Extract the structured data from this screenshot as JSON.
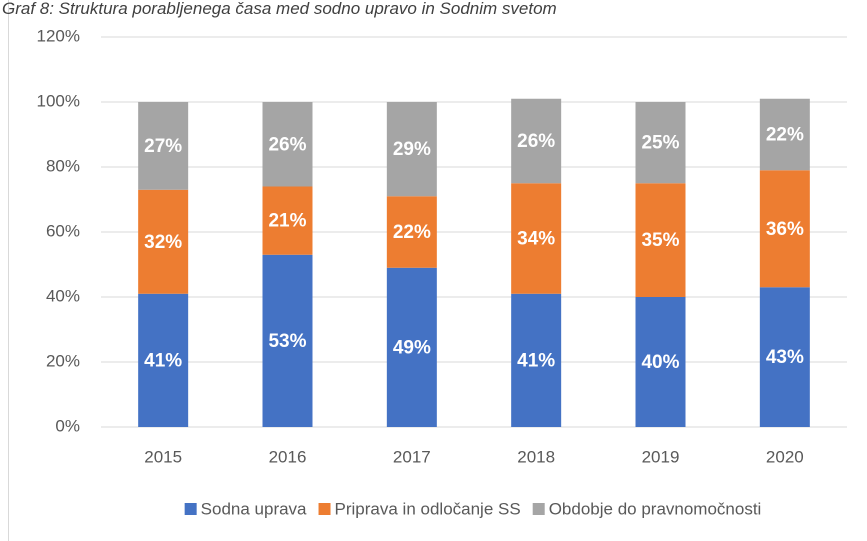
{
  "chart_data": {
    "type": "stacked_bar",
    "title": "Graf 8: Struktura porabljenega časa med sodno upravo in Sodnim svetom",
    "categories": [
      "2015",
      "2016",
      "2017",
      "2018",
      "2019",
      "2020"
    ],
    "series": [
      {
        "name": "Sodna uprava",
        "color": "#4472c4",
        "values": [
          41,
          53,
          49,
          41,
          40,
          43
        ],
        "value_labels": [
          "41%",
          "53%",
          "49%",
          "41%",
          "40%",
          "43%"
        ]
      },
      {
        "name": "Priprava in odločanje SS",
        "color": "#ed7d31",
        "values": [
          32,
          21,
          22,
          34,
          35,
          36
        ],
        "value_labels": [
          "32%",
          "21%",
          "22%",
          "34%",
          "35%",
          "36%"
        ]
      },
      {
        "name": "Obdobje do pravnomočnosti",
        "color": "#a5a5a5",
        "values": [
          27,
          26,
          29,
          26,
          25,
          22
        ],
        "value_labels": [
          "27%",
          "26%",
          "29%",
          "26%",
          "25%",
          "22%"
        ]
      }
    ],
    "ylim": [
      0,
      120
    ],
    "yticks": [
      {
        "value": 0,
        "label": "0%"
      },
      {
        "value": 20,
        "label": "20%"
      },
      {
        "value": 40,
        "label": "40%"
      },
      {
        "value": 60,
        "label": "60%"
      },
      {
        "value": 80,
        "label": "80%"
      },
      {
        "value": 100,
        "label": "100%"
      },
      {
        "value": 120,
        "label": "120%"
      }
    ],
    "grid": true,
    "legend": "bottom"
  }
}
